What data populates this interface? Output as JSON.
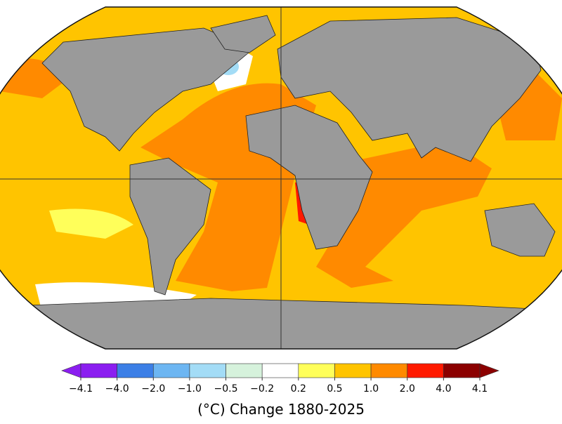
{
  "colorbar": {
    "colors": [
      "#8b1ef0",
      "#3c7fe6",
      "#6db6f2",
      "#a3dcf6",
      "#d6f2dc",
      "#ffffff",
      "#ffff5a",
      "#ffc400",
      "#ff8a00",
      "#ff1a00",
      "#8b0000"
    ],
    "labels": [
      "−4.1",
      "−4.0",
      "−2.0",
      "−1.0",
      "−0.5",
      "−0.2",
      "0.2",
      "0.5",
      "1.0",
      "2.0",
      "4.0",
      "4.1"
    ]
  },
  "caption": "(°C) Change 1880-2025"
}
